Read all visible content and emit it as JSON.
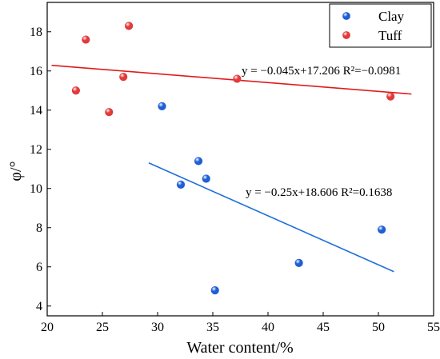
{
  "chart_data": {
    "type": "scatter",
    "xlabel": "Water content/%",
    "ylabel": "φ/°",
    "xlim": [
      20,
      55
    ],
    "ylim": [
      3.5,
      19.5
    ],
    "xticks": [
      "20",
      "25",
      "30",
      "35",
      "40",
      "45",
      "50",
      "55"
    ],
    "yticks": [
      "4",
      "6",
      "8",
      "10",
      "12",
      "14",
      "16",
      "18"
    ],
    "grid": false,
    "legend_position": "top-right",
    "series": [
      {
        "name": "Clay",
        "color": "#1f5fd6",
        "points": [
          {
            "x": 30.4,
            "y": 14.2
          },
          {
            "x": 33.7,
            "y": 11.4
          },
          {
            "x": 32.1,
            "y": 10.2
          },
          {
            "x": 34.4,
            "y": 10.5
          },
          {
            "x": 35.2,
            "y": 4.8
          },
          {
            "x": 42.8,
            "y": 6.2
          },
          {
            "x": 50.3,
            "y": 7.9
          }
        ],
        "fit": {
          "equation": "y = −0.25x+18.606 R²=0.1638",
          "x_range": [
            29.2,
            51.4
          ],
          "slope": -0.25,
          "intercept": 18.606,
          "line_color": "#1f6fd8"
        }
      },
      {
        "name": "Tuff",
        "color": "#e23a3a",
        "points": [
          {
            "x": 22.6,
            "y": 15.0
          },
          {
            "x": 23.5,
            "y": 17.6
          },
          {
            "x": 25.6,
            "y": 13.9
          },
          {
            "x": 26.9,
            "y": 15.7
          },
          {
            "x": 27.4,
            "y": 18.3
          },
          {
            "x": 37.2,
            "y": 15.6
          },
          {
            "x": 51.1,
            "y": 14.7
          }
        ],
        "fit": {
          "equation": "y = −0.045x+17.206 R²=−0.0981",
          "x_range": [
            20.4,
            53.0
          ],
          "slope": -0.045,
          "intercept": 17.206,
          "line_color": "#e01b1b"
        }
      }
    ]
  }
}
